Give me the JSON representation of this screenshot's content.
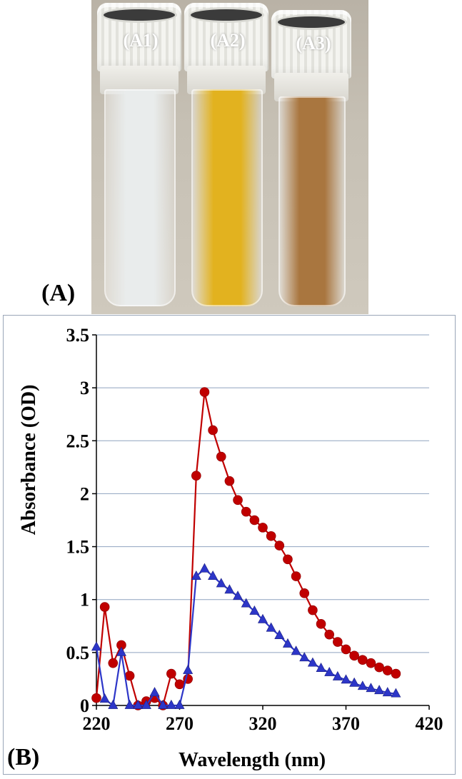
{
  "photo": {
    "tubes": [
      {
        "label": "(A1)",
        "liquid_color": "#e9ecec"
      },
      {
        "label": "(A2)",
        "liquid_color": "#e2b21f"
      },
      {
        "label": "(A3)",
        "liquid_color": "#a9763f"
      }
    ]
  },
  "panel_labels": {
    "a": "(A)",
    "b": "(B)"
  },
  "chart_data": {
    "type": "line",
    "title": "",
    "xlabel": "Wavelength (nm)",
    "ylabel": "Absorbance (OD)",
    "xlim": [
      220,
      420
    ],
    "ylim": [
      0,
      3.5
    ],
    "xticks": [
      220,
      270,
      320,
      370,
      420
    ],
    "yticks": [
      0,
      0.5,
      1,
      1.5,
      2,
      2.5,
      3,
      3.5
    ],
    "ytick_labels": [
      "0",
      "0.5",
      "1",
      "1.5",
      "2",
      "2.5",
      "3",
      "3.5"
    ],
    "grid": "horizontal",
    "legend": "none",
    "x": [
      220,
      225,
      230,
      235,
      240,
      245,
      250,
      255,
      260,
      265,
      270,
      275,
      280,
      285,
      290,
      295,
      300,
      305,
      310,
      315,
      320,
      325,
      330,
      335,
      340,
      345,
      350,
      355,
      360,
      365,
      370,
      375,
      380,
      385,
      390,
      395,
      400
    ],
    "series": [
      {
        "color": "#c00000",
        "marker": "circle",
        "values": [
          0.07,
          0.93,
          0.4,
          0.57,
          0.28,
          0.0,
          0.04,
          0.07,
          0.0,
          0.3,
          0.2,
          0.25,
          2.17,
          2.96,
          2.6,
          2.35,
          2.12,
          1.94,
          1.83,
          1.75,
          1.68,
          1.6,
          1.51,
          1.38,
          1.22,
          1.06,
          0.9,
          0.77,
          0.67,
          0.6,
          0.53,
          0.47,
          0.43,
          0.4,
          0.36,
          0.33,
          0.3
        ]
      },
      {
        "color": "#2d36c8",
        "marker": "triangle",
        "values": [
          0.55,
          0.06,
          0.0,
          0.5,
          0.0,
          0.0,
          0.0,
          0.12,
          0.0,
          0.0,
          0.0,
          0.33,
          1.22,
          1.29,
          1.22,
          1.15,
          1.09,
          1.03,
          0.96,
          0.89,
          0.81,
          0.73,
          0.66,
          0.58,
          0.51,
          0.45,
          0.4,
          0.35,
          0.31,
          0.27,
          0.24,
          0.21,
          0.18,
          0.16,
          0.14,
          0.12,
          0.11
        ]
      }
    ]
  }
}
